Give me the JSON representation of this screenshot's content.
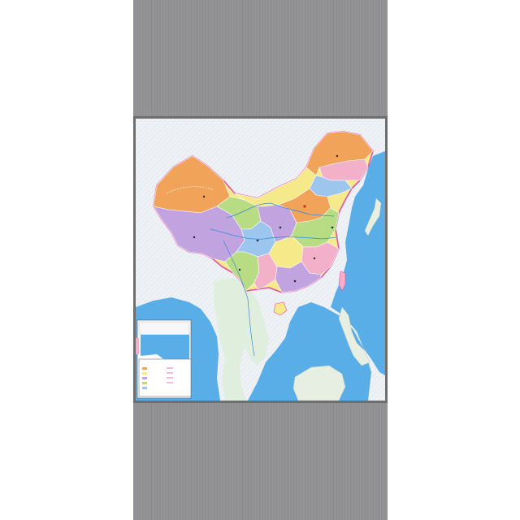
{
  "colors": {
    "sea": "#5aaee8",
    "land": "#eef2f5",
    "border": "#e052a8",
    "accent_orange": "#f2a35a",
    "accent_yellow": "#f6e98a",
    "accent_purple": "#c1a3e0",
    "accent_green": "#b7dc83",
    "accent_blue": "#9dc6ee",
    "accent_pink": "#f3b0c9"
  },
  "map": {
    "legend_title": "",
    "legend_items": [
      "",
      "",
      "",
      "",
      "",
      "",
      "",
      "",
      ""
    ],
    "scale_text": "",
    "inset_label": ""
  }
}
